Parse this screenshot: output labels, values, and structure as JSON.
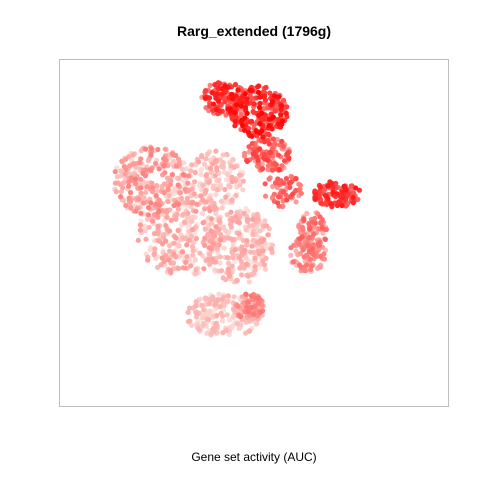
{
  "chart_data": {
    "type": "scatter",
    "title": "Rarg_extended (1796g)",
    "xlabel": "Gene set activity (AUC)",
    "ylabel": "",
    "xlim": [
      -40,
      40
    ],
    "ylim": [
      -40,
      40
    ],
    "grid": false,
    "legend": "none",
    "axes_visible": false,
    "color_scale": {
      "low": "#fde8e4",
      "high": "#ff0000"
    },
    "clusters": [
      {
        "cx": -6,
        "cy": 31,
        "rx": 5,
        "ry": 4,
        "n": 150,
        "act": [
          0.3,
          0.95
        ]
      },
      {
        "cx": 1,
        "cy": 28,
        "rx": 6,
        "ry": 6,
        "n": 220,
        "act": [
          0.45,
          1.0
        ]
      },
      {
        "cx": 3,
        "cy": 18,
        "rx": 5,
        "ry": 4,
        "n": 120,
        "act": [
          0.25,
          0.75
        ]
      },
      {
        "cx": 6,
        "cy": 10,
        "rx": 4,
        "ry": 4,
        "n": 60,
        "act": [
          0.3,
          0.7
        ]
      },
      {
        "cx": 17,
        "cy": 9,
        "rx": 5,
        "ry": 3,
        "n": 120,
        "act": [
          0.5,
          0.9
        ]
      },
      {
        "cx": 12,
        "cy": 0,
        "rx": 3,
        "ry": 5,
        "n": 80,
        "act": [
          0.2,
          0.6
        ]
      },
      {
        "cx": 11,
        "cy": -5,
        "rx": 4,
        "ry": 4,
        "n": 80,
        "act": [
          0.15,
          0.5
        ]
      },
      {
        "cx": -21,
        "cy": 12,
        "rx": 8,
        "ry": 8,
        "n": 250,
        "act": [
          0.05,
          0.45
        ]
      },
      {
        "cx": -15,
        "cy": 0,
        "rx": 9,
        "ry": 10,
        "n": 280,
        "act": [
          0.0,
          0.35
        ]
      },
      {
        "cx": -8,
        "cy": 12,
        "rx": 6,
        "ry": 7,
        "n": 140,
        "act": [
          0.0,
          0.3
        ]
      },
      {
        "cx": -3,
        "cy": -3,
        "rx": 7,
        "ry": 9,
        "n": 240,
        "act": [
          0.0,
          0.3
        ]
      },
      {
        "cx": -6,
        "cy": -19,
        "rx": 8,
        "ry": 5,
        "n": 200,
        "act": [
          0.0,
          0.25
        ]
      },
      {
        "cx": -1,
        "cy": -17,
        "rx": 3,
        "ry": 3,
        "n": 70,
        "act": [
          0.2,
          0.5
        ]
      }
    ]
  }
}
